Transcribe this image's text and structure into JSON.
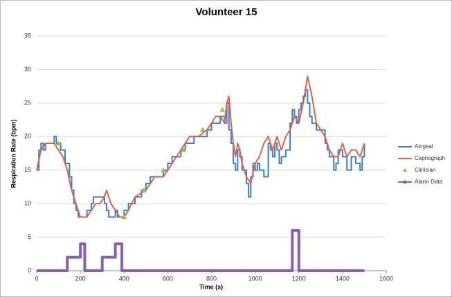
{
  "chart_data": {
    "type": "line",
    "title": "Volunteer 15",
    "x_label": "Time (s)",
    "y_label": "Respiration Rate (bpm)",
    "xlim": [
      0,
      1600
    ],
    "xticks": [
      0,
      200,
      400,
      600,
      800,
      1000,
      1200,
      1400,
      1600
    ],
    "ylim": [
      0,
      35
    ],
    "yticks": [
      0,
      5,
      10,
      15,
      20,
      25,
      30,
      35
    ],
    "grid": true,
    "legend": "right",
    "series": [
      {
        "name": "Aingeal",
        "color": "#3a7cc8",
        "kind": "step",
        "x": [
          0,
          10,
          20,
          30,
          40,
          60,
          80,
          90,
          110,
          130,
          150,
          160,
          170,
          180,
          190,
          210,
          230,
          250,
          260,
          280,
          300,
          310,
          320,
          330,
          350,
          360,
          370,
          390,
          400,
          420,
          450,
          480,
          500,
          520,
          560,
          580,
          600,
          620,
          640,
          660,
          680,
          700,
          720,
          760,
          780,
          800,
          840,
          860,
          870,
          880,
          890,
          900,
          910,
          920,
          930,
          940,
          950,
          960,
          970,
          980,
          990,
          1000,
          1010,
          1020,
          1040,
          1060,
          1070,
          1080,
          1090,
          1100,
          1110,
          1120,
          1140,
          1160,
          1170,
          1180,
          1190,
          1200,
          1210,
          1220,
          1230,
          1240,
          1250,
          1260,
          1280,
          1300,
          1320,
          1330,
          1340,
          1360,
          1370,
          1380,
          1400,
          1420,
          1440,
          1460,
          1480,
          1490,
          1500
        ],
        "values": [
          15,
          18,
          19,
          18,
          19,
          19,
          20,
          19,
          18,
          16,
          14,
          12,
          10,
          9,
          8,
          8,
          9,
          10,
          11,
          11,
          11,
          10,
          9,
          8,
          8,
          9,
          8,
          8,
          9,
          10,
          11,
          12,
          13,
          14,
          14,
          15,
          16,
          17,
          17,
          18,
          19,
          19,
          20,
          20,
          21,
          22,
          23,
          22,
          25,
          21,
          19,
          16,
          15,
          18,
          17,
          15,
          15,
          13,
          11,
          14,
          16,
          15,
          16,
          15,
          14,
          19,
          18,
          17,
          19,
          18,
          16,
          17,
          18,
          22,
          24,
          23,
          22,
          24,
          25,
          26,
          27,
          25,
          23,
          22,
          21,
          21,
          19,
          18,
          17,
          15,
          16,
          18,
          17,
          15,
          17,
          16,
          15,
          17,
          19
        ]
      },
      {
        "name": "Capnograph",
        "color": "#d9624a",
        "kind": "line",
        "x": [
          0,
          20,
          40,
          80,
          100,
          120,
          140,
          160,
          180,
          200,
          230,
          250,
          270,
          290,
          310,
          320,
          330,
          340,
          360,
          380,
          400,
          420,
          450,
          500,
          540,
          580,
          620,
          660,
          700,
          740,
          780,
          800,
          820,
          840,
          860,
          870,
          880,
          890,
          900,
          910,
          920,
          930,
          940,
          960,
          980,
          1000,
          1020,
          1040,
          1060,
          1080,
          1100,
          1120,
          1140,
          1160,
          1180,
          1200,
          1220,
          1240,
          1260,
          1280,
          1300,
          1320,
          1340,
          1360,
          1380,
          1400,
          1420,
          1440,
          1460,
          1480,
          1500
        ],
        "values": [
          15,
          18,
          19,
          19,
          18,
          17,
          15,
          12,
          10,
          8,
          8,
          9,
          10,
          10,
          11,
          12,
          11,
          10,
          9,
          8,
          8,
          9,
          11,
          12,
          14,
          14,
          16,
          18,
          20,
          20,
          21,
          22,
          23,
          23,
          22,
          25,
          26,
          22,
          19,
          17,
          19,
          18,
          16,
          14,
          13,
          16,
          17,
          19,
          20,
          18,
          20,
          18,
          20,
          21,
          23,
          22,
          25,
          29,
          26,
          22,
          21,
          20,
          18,
          17,
          17,
          19,
          17,
          18,
          18,
          17,
          19
        ]
      },
      {
        "name": "Clinician",
        "color": "#8cc63f",
        "kind": "scatter",
        "x": [
          100,
          400,
          490,
          580,
          670,
          760,
          850
        ],
        "values": [
          19,
          8,
          12,
          15,
          18,
          21,
          24
        ]
      },
      {
        "name": "Alarm Data",
        "color": "#8a5fb0",
        "kind": "line",
        "x": [
          0,
          140,
          140,
          200,
          200,
          220,
          220,
          300,
          300,
          360,
          360,
          390,
          390,
          1170,
          1170,
          1200,
          1200,
          1500
        ],
        "values": [
          0,
          0,
          2,
          2,
          4,
          4,
          0,
          0,
          2,
          2,
          4,
          4,
          0,
          0,
          6,
          6,
          0,
          0
        ]
      }
    ]
  }
}
